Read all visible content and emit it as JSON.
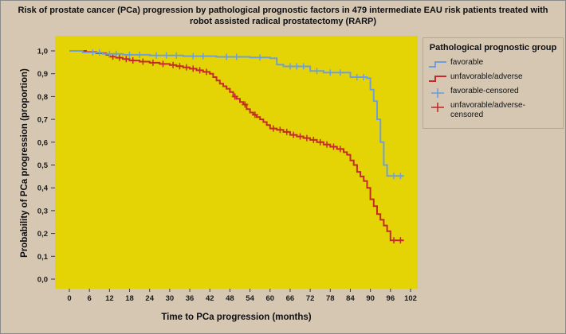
{
  "chart_data": {
    "type": "line",
    "subtype": "kaplan-meier-step",
    "title": "Risk of prostate cancer (PCa) progression by pathological prognostic factors in 479 intermediate EAU risk patients treated with robot assisted radical prostatectomy (RARP)",
    "xlabel": "Time to PCa progression (months)",
    "ylabel": "Probability of PCa progression (proportion)",
    "xlim": [
      0,
      102
    ],
    "ylim": [
      0,
      1.0
    ],
    "xticks": [
      0,
      6,
      12,
      18,
      24,
      30,
      36,
      42,
      48,
      54,
      60,
      66,
      72,
      78,
      84,
      90,
      96,
      102
    ],
    "yticks": [
      [
        0.0,
        "0,0"
      ],
      [
        0.1,
        "0,1"
      ],
      [
        0.2,
        "0,2"
      ],
      [
        0.3,
        "0,3"
      ],
      [
        0.4,
        "0,4"
      ],
      [
        0.5,
        "0,5"
      ],
      [
        0.6,
        "0,6"
      ],
      [
        0.7,
        "0,7"
      ],
      [
        0.8,
        "0,8"
      ],
      [
        0.9,
        "0,9"
      ],
      [
        1.0,
        "1,0"
      ]
    ],
    "grid": false,
    "colors": {
      "plot_bg": "#e4d406",
      "figure_bg": "#d6c7b2",
      "favorable": "#6f9fd8",
      "unfavorable": "#c42a2a",
      "text": "#1a1a1a"
    },
    "legend": {
      "title": "Pathological prognostic group",
      "position": "right",
      "entries": [
        {
          "label": "favorable",
          "marker": "line",
          "color_key": "favorable"
        },
        {
          "label": "unfavorable/adverse",
          "marker": "line",
          "color_key": "unfavorable"
        },
        {
          "label": "favorable-censored",
          "marker": "plus",
          "color_key": "favorable"
        },
        {
          "label": "unfavorable/adverse-censored",
          "marker": "plus",
          "color_key": "unfavorable"
        }
      ]
    },
    "series": [
      {
        "name": "unfavorable/adverse",
        "color_key": "unfavorable",
        "steps": [
          [
            0,
            1.0
          ],
          [
            5,
            0.995
          ],
          [
            8,
            0.99
          ],
          [
            11,
            0.983
          ],
          [
            12,
            0.975
          ],
          [
            14,
            0.97
          ],
          [
            16,
            0.964
          ],
          [
            18,
            0.958
          ],
          [
            21,
            0.953
          ],
          [
            24,
            0.948
          ],
          [
            27,
            0.943
          ],
          [
            30,
            0.938
          ],
          [
            32,
            0.933
          ],
          [
            34,
            0.928
          ],
          [
            36,
            0.922
          ],
          [
            38,
            0.915
          ],
          [
            40,
            0.908
          ],
          [
            42,
            0.9
          ],
          [
            43,
            0.885
          ],
          [
            44,
            0.87
          ],
          [
            45,
            0.856
          ],
          [
            46,
            0.845
          ],
          [
            47,
            0.834
          ],
          [
            48,
            0.82
          ],
          [
            49,
            0.8
          ],
          [
            50,
            0.79
          ],
          [
            51,
            0.776
          ],
          [
            52,
            0.765
          ],
          [
            53,
            0.745
          ],
          [
            54,
            0.73
          ],
          [
            55,
            0.72
          ],
          [
            56,
            0.71
          ],
          [
            57,
            0.7
          ],
          [
            58,
            0.688
          ],
          [
            59,
            0.675
          ],
          [
            60,
            0.66
          ],
          [
            62,
            0.654
          ],
          [
            64,
            0.645
          ],
          [
            66,
            0.632
          ],
          [
            68,
            0.625
          ],
          [
            70,
            0.618
          ],
          [
            72,
            0.61
          ],
          [
            74,
            0.6
          ],
          [
            76,
            0.59
          ],
          [
            78,
            0.58
          ],
          [
            80,
            0.57
          ],
          [
            82,
            0.556
          ],
          [
            83,
            0.545
          ],
          [
            84,
            0.52
          ],
          [
            85,
            0.5
          ],
          [
            86,
            0.47
          ],
          [
            87,
            0.45
          ],
          [
            88,
            0.43
          ],
          [
            89,
            0.4
          ],
          [
            90,
            0.35
          ],
          [
            91,
            0.32
          ],
          [
            92,
            0.285
          ],
          [
            93,
            0.26
          ],
          [
            94,
            0.235
          ],
          [
            95,
            0.21
          ],
          [
            96,
            0.17
          ],
          [
            100,
            0.17
          ]
        ],
        "censored": [
          [
            13,
            0.975
          ],
          [
            15,
            0.97
          ],
          [
            17,
            0.964
          ],
          [
            19,
            0.958
          ],
          [
            22,
            0.953
          ],
          [
            25,
            0.948
          ],
          [
            28,
            0.943
          ],
          [
            31,
            0.938
          ],
          [
            33,
            0.933
          ],
          [
            35,
            0.928
          ],
          [
            37,
            0.922
          ],
          [
            39,
            0.915
          ],
          [
            41,
            0.908
          ],
          [
            49.5,
            0.8
          ],
          [
            52.5,
            0.765
          ],
          [
            55.5,
            0.72
          ],
          [
            61,
            0.66
          ],
          [
            63,
            0.654
          ],
          [
            65,
            0.645
          ],
          [
            67,
            0.632
          ],
          [
            69,
            0.625
          ],
          [
            71,
            0.618
          ],
          [
            73,
            0.61
          ],
          [
            75,
            0.6
          ],
          [
            77,
            0.59
          ],
          [
            79,
            0.58
          ],
          [
            81,
            0.57
          ],
          [
            97,
            0.17
          ],
          [
            99,
            0.17
          ]
        ]
      },
      {
        "name": "favorable",
        "color_key": "favorable",
        "steps": [
          [
            0,
            1.0
          ],
          [
            4,
            0.993
          ],
          [
            10,
            0.987
          ],
          [
            16,
            0.983
          ],
          [
            24,
            0.98
          ],
          [
            34,
            0.977
          ],
          [
            44,
            0.974
          ],
          [
            54,
            0.971
          ],
          [
            60,
            0.968
          ],
          [
            62,
            0.94
          ],
          [
            64,
            0.932
          ],
          [
            72,
            0.912
          ],
          [
            76,
            0.905
          ],
          [
            84,
            0.885
          ],
          [
            89,
            0.88
          ],
          [
            90,
            0.83
          ],
          [
            91,
            0.78
          ],
          [
            92,
            0.7
          ],
          [
            93,
            0.6
          ],
          [
            94,
            0.5
          ],
          [
            95,
            0.452
          ],
          [
            100,
            0.452
          ]
        ],
        "censored": [
          [
            7,
            0.993
          ],
          [
            9,
            0.993
          ],
          [
            12,
            0.987
          ],
          [
            14,
            0.987
          ],
          [
            18,
            0.983
          ],
          [
            21,
            0.983
          ],
          [
            26,
            0.98
          ],
          [
            29,
            0.98
          ],
          [
            32,
            0.98
          ],
          [
            37,
            0.977
          ],
          [
            40,
            0.977
          ],
          [
            47,
            0.974
          ],
          [
            50,
            0.974
          ],
          [
            57,
            0.971
          ],
          [
            66,
            0.932
          ],
          [
            68,
            0.932
          ],
          [
            70,
            0.932
          ],
          [
            74,
            0.912
          ],
          [
            78,
            0.905
          ],
          [
            81,
            0.905
          ],
          [
            86,
            0.885
          ],
          [
            88,
            0.885
          ],
          [
            97,
            0.452
          ],
          [
            99,
            0.452
          ]
        ]
      }
    ]
  }
}
